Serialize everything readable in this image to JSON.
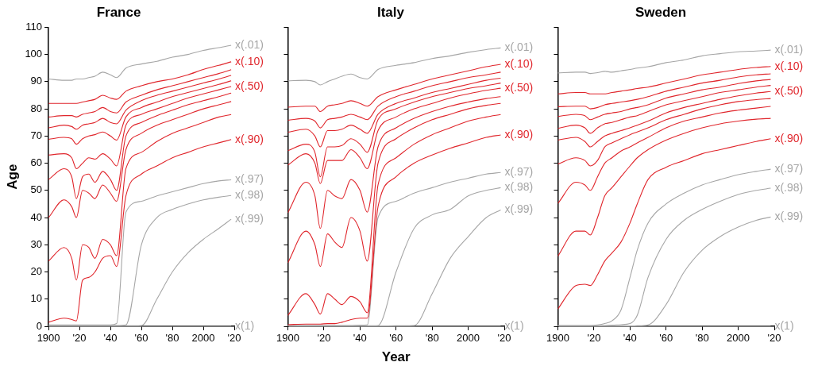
{
  "chart_data": [
    {
      "type": "line",
      "title": "France",
      "ylabel": "Age",
      "xlim": [
        1900,
        2020
      ],
      "ylim": [
        0,
        110
      ],
      "xticks": [
        {
          "value": 1900,
          "label": "1900"
        },
        {
          "value": 1920,
          "label": "'20"
        },
        {
          "value": 1940,
          "label": "'40"
        },
        {
          "value": 1960,
          "label": "'60"
        },
        {
          "value": 1980,
          "label": "'80"
        },
        {
          "value": 2000,
          "label": "2000"
        },
        {
          "value": 2020,
          "label": "'20"
        }
      ],
      "yticks": [
        0,
        10,
        20,
        30,
        40,
        50,
        60,
        70,
        80,
        90,
        100,
        110
      ],
      "x": [
        1900,
        1910,
        1915,
        1918,
        1922,
        1926,
        1930,
        1935,
        1940,
        1944,
        1950,
        1960,
        1970,
        1980,
        1990,
        2000,
        2010,
        2018
      ],
      "series": [
        {
          "name": "x(.01)",
          "color": "#a6a6a6",
          "values": [
            91,
            90.5,
            90.5,
            91,
            91,
            91.5,
            92,
            93.5,
            92.5,
            91.5,
            95,
            96.5,
            97.5,
            99,
            100,
            101.5,
            102.5,
            103.4
          ]
        },
        {
          "name": "x(.10)",
          "color": "#e0262c",
          "values": [
            82,
            82,
            82,
            82,
            82.5,
            83,
            83.5,
            85,
            84,
            83.5,
            86.5,
            88.5,
            90,
            91,
            92.5,
            94.5,
            96,
            97.3
          ]
        },
        {
          "color": "#e0262c",
          "values": [
            77,
            77.5,
            77.5,
            77,
            78,
            78.5,
            79,
            80.5,
            79,
            78.5,
            82.5,
            85,
            87,
            88.5,
            90,
            91.5,
            93,
            94.4
          ]
        },
        {
          "color": "#e0262c",
          "values": [
            73,
            74,
            73.5,
            72.5,
            74,
            74.5,
            75,
            76.5,
            75,
            74.5,
            79.5,
            83,
            85,
            86.5,
            88,
            89.5,
            91,
            92.3
          ]
        },
        {
          "color": "#e0262c",
          "values": [
            68.8,
            69.5,
            69,
            67,
            69,
            70,
            70.5,
            71.5,
            70,
            68.5,
            77,
            80.5,
            82.5,
            84.5,
            86,
            87.5,
            89,
            90.3
          ]
        },
        {
          "name": "x(.50)",
          "color": "#e0262c",
          "values": [
            63,
            63.5,
            62,
            58,
            60,
            62,
            61.5,
            63.5,
            61.5,
            59,
            74,
            78,
            80,
            82,
            84,
            85.5,
            87,
            88.2
          ]
        },
        {
          "color": "#e0262c",
          "values": [
            54,
            58,
            55,
            47,
            55,
            56,
            53,
            57,
            54,
            50,
            70,
            75,
            77.5,
            79.5,
            81.5,
            83,
            84.5,
            85.8
          ]
        },
        {
          "color": "#e0262c",
          "values": [
            40,
            46.5,
            44,
            40,
            50,
            49,
            47,
            52,
            49,
            46,
            65,
            71,
            74,
            76,
            78,
            80,
            81.5,
            82.7
          ]
        },
        {
          "color": "#e0262c",
          "values": [
            24,
            29,
            25,
            17,
            30,
            29,
            25,
            32,
            30,
            26,
            58,
            64,
            68,
            71,
            73,
            75,
            77,
            77.9
          ]
        },
        {
          "name": "x(.90)",
          "color": "#e0262c",
          "values": [
            1.5,
            3,
            2.5,
            2,
            17,
            18,
            20,
            25,
            26,
            22,
            48,
            56,
            59,
            62,
            64,
            66,
            67.5,
            68.7
          ]
        },
        {
          "name": "x(.97)",
          "color": "#a6a6a6",
          "values": [
            0.5,
            0.5,
            0.5,
            0.5,
            0.5,
            0.5,
            0.5,
            0.5,
            0.5,
            1,
            42,
            46,
            48,
            49.5,
            51,
            52.5,
            53.5,
            53.9
          ]
        },
        {
          "name": "x(.98)",
          "color": "#a6a6a6",
          "values": [
            0.3,
            0.3,
            0.3,
            0.3,
            0.3,
            0.3,
            0.3,
            0.3,
            0.3,
            0.3,
            0.5,
            30,
            40,
            43,
            45,
            46.5,
            47.5,
            48.1
          ]
        },
        {
          "name": "x(.99)",
          "color": "#a6a6a6",
          "values": [
            0.2,
            0.2,
            0.2,
            0.2,
            0.2,
            0.2,
            0.2,
            0.2,
            0.2,
            0.2,
            0.2,
            0.3,
            10,
            20,
            27,
            32,
            36,
            39.4
          ]
        },
        {
          "name": "x(1)",
          "color": "#a6a6a6",
          "values": [
            0,
            0,
            0,
            0,
            0,
            0,
            0,
            0,
            0,
            0,
            0,
            0,
            0,
            0,
            0,
            0,
            0,
            0
          ]
        }
      ]
    },
    {
      "type": "line",
      "title": "Italy",
      "xlabel": "Year",
      "tick_labels": "x",
      "xlim": [
        1900,
        2020
      ],
      "ylim": [
        0,
        110
      ],
      "xticks": [
        {
          "value": 1900,
          "label": "1900"
        },
        {
          "value": 1920,
          "label": "'20"
        },
        {
          "value": 1940,
          "label": "'40"
        },
        {
          "value": 1960,
          "label": "'60"
        },
        {
          "value": 1980,
          "label": "'80"
        },
        {
          "value": 2000,
          "label": "2000"
        },
        {
          "value": 2020,
          "label": "'20"
        }
      ],
      "yticks": [
        0,
        10,
        20,
        30,
        40,
        50,
        60,
        70,
        80,
        90,
        100,
        110
      ],
      "x": [
        1900,
        1910,
        1915,
        1918,
        1922,
        1926,
        1930,
        1935,
        1940,
        1944,
        1950,
        1960,
        1970,
        1980,
        1990,
        2000,
        2010,
        2018
      ],
      "series": [
        {
          "name": "x(.01)",
          "color": "#a6a6a6",
          "values": [
            90.3,
            90.5,
            90,
            88.8,
            90,
            91,
            92,
            92.8,
            91.5,
            91,
            94.5,
            96,
            97,
            98.5,
            99.5,
            100.8,
            101.8,
            102.4
          ]
        },
        {
          "name": "x(.10)",
          "color": "#e0262c",
          "values": [
            80.6,
            81,
            81,
            79,
            81,
            81.5,
            82,
            83,
            82,
            81,
            84.5,
            87,
            89,
            91,
            92.5,
            94,
            95.5,
            96.4
          ]
        },
        {
          "color": "#e0262c",
          "values": [
            75.8,
            76.5,
            75.5,
            73,
            76,
            76.5,
            77,
            78,
            77,
            76,
            81,
            84.5,
            86.5,
            88.5,
            90,
            91.5,
            92.5,
            93.5
          ]
        },
        {
          "color": "#e0262c",
          "values": [
            71.4,
            72.5,
            70,
            66,
            72,
            72,
            72.5,
            74,
            72.5,
            71,
            78,
            82,
            84,
            86,
            87.5,
            89,
            90.5,
            91.3
          ]
        },
        {
          "color": "#e0262c",
          "values": [
            64.6,
            67,
            64,
            55,
            66,
            66,
            66.5,
            69,
            67,
            64,
            76,
            80,
            82.5,
            84.5,
            86,
            87.5,
            88.5,
            89.5
          ]
        },
        {
          "name": "x(.50)",
          "color": "#e0262c",
          "values": [
            59.3,
            63.5,
            60,
            52.5,
            61,
            61,
            61,
            65,
            62,
            58,
            72,
            77,
            80,
            82,
            84,
            85.5,
            86.8,
            87.6
          ]
        },
        {
          "color": "#e0262c",
          "values": [
            41.8,
            53,
            48,
            36,
            50,
            48,
            47,
            54,
            50,
            42,
            66,
            73,
            76.5,
            79,
            81,
            82.5,
            83.8,
            84.5
          ]
        },
        {
          "color": "#e0262c",
          "values": [
            23.4,
            35,
            30,
            22,
            34,
            31,
            29,
            40,
            35,
            24,
            60,
            69,
            73,
            76,
            78,
            80,
            81.3,
            82
          ]
        },
        {
          "color": "#e0262c",
          "values": [
            4,
            12,
            8,
            4.5,
            12,
            10,
            8,
            11,
            9,
            5,
            52,
            62,
            67,
            70.5,
            73,
            75.5,
            77,
            77.9
          ]
        },
        {
          "name": "x(.90)",
          "color": "#e0262c",
          "values": [
            0.6,
            0.8,
            0.8,
            0.8,
            1,
            1,
            1.5,
            2.5,
            3,
            3,
            44,
            55,
            60,
            63,
            65.5,
            67.5,
            69.5,
            70.4
          ]
        },
        {
          "name": "x(.97)",
          "color": "#a6a6a6",
          "values": [
            0.3,
            0.3,
            0.3,
            0.3,
            0.3,
            0.3,
            0.3,
            0.3,
            0.4,
            0.5,
            40,
            46,
            49,
            51,
            53,
            54.5,
            56,
            56.6
          ]
        },
        {
          "name": "x(.98)",
          "color": "#a6a6a6",
          "values": [
            0.2,
            0.2,
            0.2,
            0.2,
            0.2,
            0.2,
            0.2,
            0.2,
            0.2,
            0.2,
            0.3,
            20,
            36,
            41,
            43,
            48,
            50,
            51
          ]
        },
        {
          "name": "x(.99)",
          "color": "#a6a6a6",
          "values": [
            0.1,
            0.1,
            0.1,
            0.1,
            0.1,
            0.1,
            0.1,
            0.1,
            0.1,
            0.1,
            0.1,
            0.2,
            0.3,
            12,
            25,
            33,
            40,
            42.8
          ]
        },
        {
          "name": "x(1)",
          "color": "#a6a6a6",
          "values": [
            0,
            0,
            0,
            0,
            0,
            0,
            0,
            0,
            0,
            0,
            0,
            0,
            0,
            0,
            0,
            0,
            0,
            0
          ]
        }
      ]
    },
    {
      "type": "line",
      "title": "Sweden",
      "tick_labels": "x",
      "xlim": [
        1900,
        2020
      ],
      "ylim": [
        0,
        110
      ],
      "xticks": [
        {
          "value": 1900,
          "label": "1900"
        },
        {
          "value": 1920,
          "label": "'20"
        },
        {
          "value": 1940,
          "label": "'40"
        },
        {
          "value": 1960,
          "label": "'60"
        },
        {
          "value": 1980,
          "label": "'80"
        },
        {
          "value": 2000,
          "label": "2000"
        },
        {
          "value": 2020,
          "label": "'20"
        }
      ],
      "yticks": [
        0,
        10,
        20,
        30,
        40,
        50,
        60,
        70,
        80,
        90,
        100,
        110
      ],
      "x": [
        1900,
        1910,
        1915,
        1918,
        1922,
        1926,
        1930,
        1935,
        1940,
        1944,
        1950,
        1960,
        1970,
        1980,
        1990,
        2000,
        2010,
        2018
      ],
      "series": [
        {
          "name": "x(.01)",
          "color": "#a6a6a6",
          "values": [
            93.2,
            93.5,
            93.5,
            93,
            93.3,
            93.8,
            93.5,
            94,
            94.5,
            95,
            95.5,
            97,
            98,
            99.5,
            100.3,
            101,
            101.3,
            101.6
          ]
        },
        {
          "name": "x(.10)",
          "color": "#e0262c",
          "values": [
            85.5,
            86,
            86,
            85.5,
            85.5,
            85.5,
            86,
            86.5,
            87,
            87.5,
            88,
            89.5,
            91,
            92.5,
            93.5,
            94.5,
            95.2,
            95.6
          ]
        },
        {
          "color": "#e0262c",
          "values": [
            80.8,
            81,
            81,
            80,
            80.5,
            81.5,
            82,
            82.5,
            83,
            83.5,
            84.5,
            86.5,
            88,
            89.5,
            90.5,
            91.7,
            92.5,
            92.9
          ]
        },
        {
          "color": "#e0262c",
          "values": [
            77.2,
            78,
            77.5,
            76,
            77,
            78,
            78.5,
            79,
            80,
            80.5,
            81.5,
            84,
            85.5,
            87,
            88,
            89.3,
            90.3,
            90.8
          ]
        },
        {
          "color": "#e0262c",
          "values": [
            72.8,
            74,
            73,
            71,
            73,
            74.5,
            75,
            76,
            77,
            77.5,
            79,
            81.5,
            83,
            84.5,
            86,
            87,
            88,
            88.6
          ]
        },
        {
          "name": "x(.50)",
          "color": "#e0262c",
          "values": [
            68.5,
            69.5,
            68,
            66,
            68,
            70,
            71,
            72,
            73,
            74,
            75.5,
            78.5,
            80.5,
            82,
            83.5,
            84.8,
            85.8,
            86.4
          ]
        },
        {
          "color": "#e0262c",
          "values": [
            59.7,
            62,
            61,
            59,
            61,
            66,
            67.5,
            69,
            70.5,
            71.5,
            73,
            76,
            78,
            80,
            81.5,
            82.7,
            83.4,
            83.8
          ]
        },
        {
          "color": "#e0262c",
          "values": [
            45.2,
            53,
            52,
            50,
            55,
            60,
            62,
            64.5,
            66,
            67.5,
            69.5,
            73,
            75.5,
            77,
            78.5,
            79.5,
            80.3,
            80.9
          ]
        },
        {
          "color": "#e0262c",
          "values": [
            25.8,
            35,
            35,
            33.6,
            40,
            48,
            51,
            55,
            59,
            62,
            65,
            68.5,
            71,
            73,
            74.5,
            75.5,
            76.2,
            76.5
          ]
        },
        {
          "name": "x(.90)",
          "color": "#e0262c",
          "values": [
            6.4,
            15,
            15.5,
            15,
            19,
            24,
            27,
            31,
            38,
            45,
            54,
            58.5,
            61,
            63.5,
            65,
            66.5,
            68,
            69
          ]
        },
        {
          "name": "x(.97)",
          "color": "#a6a6a6",
          "values": [
            0.3,
            0.3,
            0.3,
            0.3,
            0.5,
            1,
            2,
            6,
            18,
            28,
            38,
            45,
            49,
            52,
            54,
            55.8,
            57,
            57.8
          ]
        },
        {
          "name": "x(.98)",
          "color": "#a6a6a6",
          "values": [
            0.2,
            0.2,
            0.2,
            0.2,
            0.2,
            0.3,
            0.4,
            0.6,
            1,
            4,
            18,
            32,
            39,
            43,
            46,
            48.5,
            50,
            50.8
          ]
        },
        {
          "name": "x(.99)",
          "color": "#a6a6a6",
          "values": [
            0.1,
            0.1,
            0.1,
            0.1,
            0.1,
            0.1,
            0.1,
            0.1,
            0.1,
            0.2,
            0.5,
            8,
            20,
            28,
            33,
            36.5,
            39,
            40.2
          ]
        },
        {
          "name": "x(1)",
          "color": "#a6a6a6",
          "values": [
            0,
            0,
            0,
            0,
            0,
            0,
            0,
            0,
            0,
            0,
            0,
            0,
            0,
            0,
            0,
            0,
            0,
            0
          ]
        }
      ]
    }
  ]
}
